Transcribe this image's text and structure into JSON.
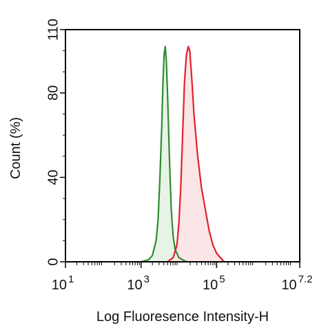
{
  "chart_data": {
    "type": "area",
    "xlabel": "Log Fluoresence Intensity-H",
    "ylabel": "Count  (%)",
    "x_scale": "log10",
    "xlim_log10": [
      1,
      7.2
    ],
    "ylim": [
      0,
      110
    ],
    "x_ticks": [
      {
        "log10": 1,
        "base": "10",
        "exp": "1"
      },
      {
        "log10": 3,
        "base": "10",
        "exp": "3"
      },
      {
        "log10": 5,
        "base": "10",
        "exp": "5"
      },
      {
        "log10": 7.2,
        "base": "10",
        "exp": "7.2"
      }
    ],
    "y_ticks": [
      {
        "value": 0,
        "label": "0"
      },
      {
        "value": 40,
        "label": "40"
      },
      {
        "value": 80,
        "label": "80"
      },
      {
        "value": 110,
        "label": "110"
      }
    ],
    "grid": false,
    "series": [
      {
        "color": "#2e8b2e",
        "fill": "#e4f2e4",
        "points_log10x_y": [
          [
            3.0,
            0
          ],
          [
            3.2,
            1
          ],
          [
            3.3,
            3
          ],
          [
            3.4,
            10
          ],
          [
            3.45,
            20
          ],
          [
            3.5,
            40
          ],
          [
            3.55,
            65
          ],
          [
            3.58,
            85
          ],
          [
            3.61,
            98
          ],
          [
            3.64,
            102
          ],
          [
            3.67,
            95
          ],
          [
            3.7,
            80
          ],
          [
            3.75,
            50
          ],
          [
            3.8,
            25
          ],
          [
            3.85,
            12
          ],
          [
            3.9,
            6
          ],
          [
            4.0,
            2
          ],
          [
            4.2,
            0
          ]
        ]
      },
      {
        "color": "#e0202a",
        "fill": "#fbe2e3",
        "points_log10x_y": [
          [
            3.7,
            0
          ],
          [
            3.85,
            2
          ],
          [
            3.95,
            8
          ],
          [
            4.0,
            18
          ],
          [
            4.05,
            35
          ],
          [
            4.1,
            60
          ],
          [
            4.15,
            85
          ],
          [
            4.2,
            98
          ],
          [
            4.25,
            102
          ],
          [
            4.29,
            100
          ],
          [
            4.35,
            85
          ],
          [
            4.4,
            70
          ],
          [
            4.5,
            50
          ],
          [
            4.6,
            35
          ],
          [
            4.7,
            25
          ],
          [
            4.8,
            15
          ],
          [
            4.9,
            8
          ],
          [
            5.0,
            4
          ],
          [
            5.1,
            2
          ],
          [
            5.2,
            0
          ]
        ]
      }
    ]
  }
}
